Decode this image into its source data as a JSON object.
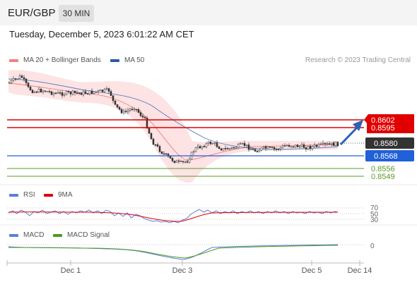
{
  "header": {
    "symbol": "EUR/GBP",
    "timeframe": "30 MIN"
  },
  "timestamp": "Tuesday, December 5, 2023 6:01:22 AM CET",
  "main_legend": {
    "ma20": {
      "label": "MA 20 + Bollinger Bands",
      "color": "#f08080"
    },
    "ma50": {
      "label": "MA 50",
      "color": "#2d5aa0"
    }
  },
  "watermark": "Research © 2023 Trading Central",
  "levels": {
    "resistance_2": {
      "label": "0.8602",
      "color": "#e00000"
    },
    "resistance_1": {
      "label": "0.8595",
      "color": "#e00000"
    },
    "current": {
      "label": "0.8580",
      "color": "#333333"
    },
    "pivot": {
      "label": "0.8568",
      "color": "#2060d8"
    },
    "support_1": {
      "label": "0.8556",
      "color": "#5a9a28"
    },
    "support_2": {
      "label": "0.8549",
      "color": "#5a9a28"
    }
  },
  "rsi_legend": {
    "rsi": {
      "label": "RSI",
      "color": "#5a7fd8"
    },
    "ma9": {
      "label": "9MA",
      "color": "#e00000"
    }
  },
  "rsi_levels": [
    "70",
    "50",
    "30"
  ],
  "macd_legend": {
    "macd": {
      "label": "MACD",
      "color": "#5a7fd8"
    },
    "signal": {
      "label": "MACD Signal",
      "color": "#4a9a20"
    }
  },
  "macd_level": "0",
  "x_axis": [
    "Dec 1",
    "Dec 3",
    "Dec 5",
    "Dec 14"
  ]
}
